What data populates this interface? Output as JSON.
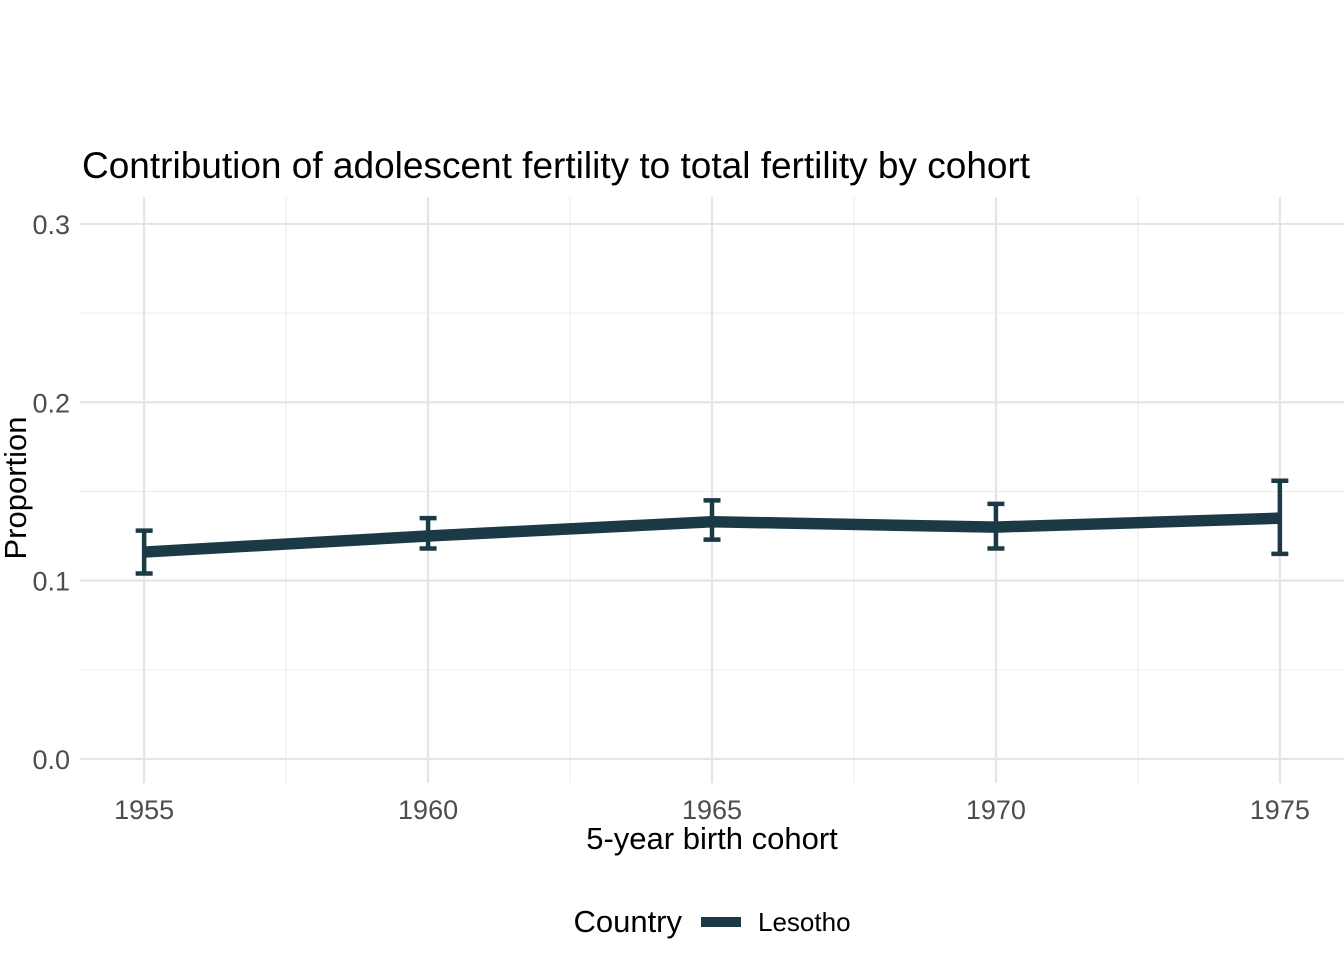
{
  "colors": {
    "line": "#1c3a46",
    "grid_major": "#e5e5e5",
    "grid_minor": "#efefef",
    "tick_text": "#4d4d4d",
    "text": "#000000",
    "background": "#ffffff"
  },
  "legend": {
    "title": "Country",
    "items": [
      {
        "label": "Lesotho",
        "color": "#1c3a46",
        "swatch": "thick-line"
      }
    ],
    "position": "bottom"
  },
  "chart_data": {
    "type": "line",
    "title": "Contribution of adolescent fertility to total fertility by cohort",
    "xlabel": "5-year birth cohort",
    "ylabel": "Proportion",
    "legend_title": "Country",
    "series": [
      {
        "name": "Lesotho",
        "color": "#1c3a46",
        "x": [
          1955,
          1960,
          1965,
          1970,
          1975
        ],
        "y": [
          0.116,
          0.125,
          0.133,
          0.13,
          0.135
        ],
        "ymin": [
          0.104,
          0.118,
          0.123,
          0.118,
          0.115
        ],
        "ymax": [
          0.128,
          0.135,
          0.145,
          0.143,
          0.156
        ],
        "error_bars": true
      }
    ],
    "x_ticks": [
      1955,
      1960,
      1965,
      1970,
      1975
    ],
    "x_tick_labels": [
      "1955",
      "1960",
      "1965",
      "1970",
      "1975"
    ],
    "x_minor": [
      1957.5,
      1962.5,
      1967.5,
      1972.5
    ],
    "y_ticks": [
      0.0,
      0.1,
      0.2,
      0.3
    ],
    "y_tick_labels": [
      "0.0",
      "0.1",
      "0.2",
      "0.3"
    ],
    "y_minor": [
      0.05,
      0.15,
      0.25
    ],
    "xlim": [
      1953.87,
      1976.13
    ],
    "ylim": [
      -0.0135,
      0.3151
    ],
    "grid": true,
    "legend_position": "bottom"
  }
}
